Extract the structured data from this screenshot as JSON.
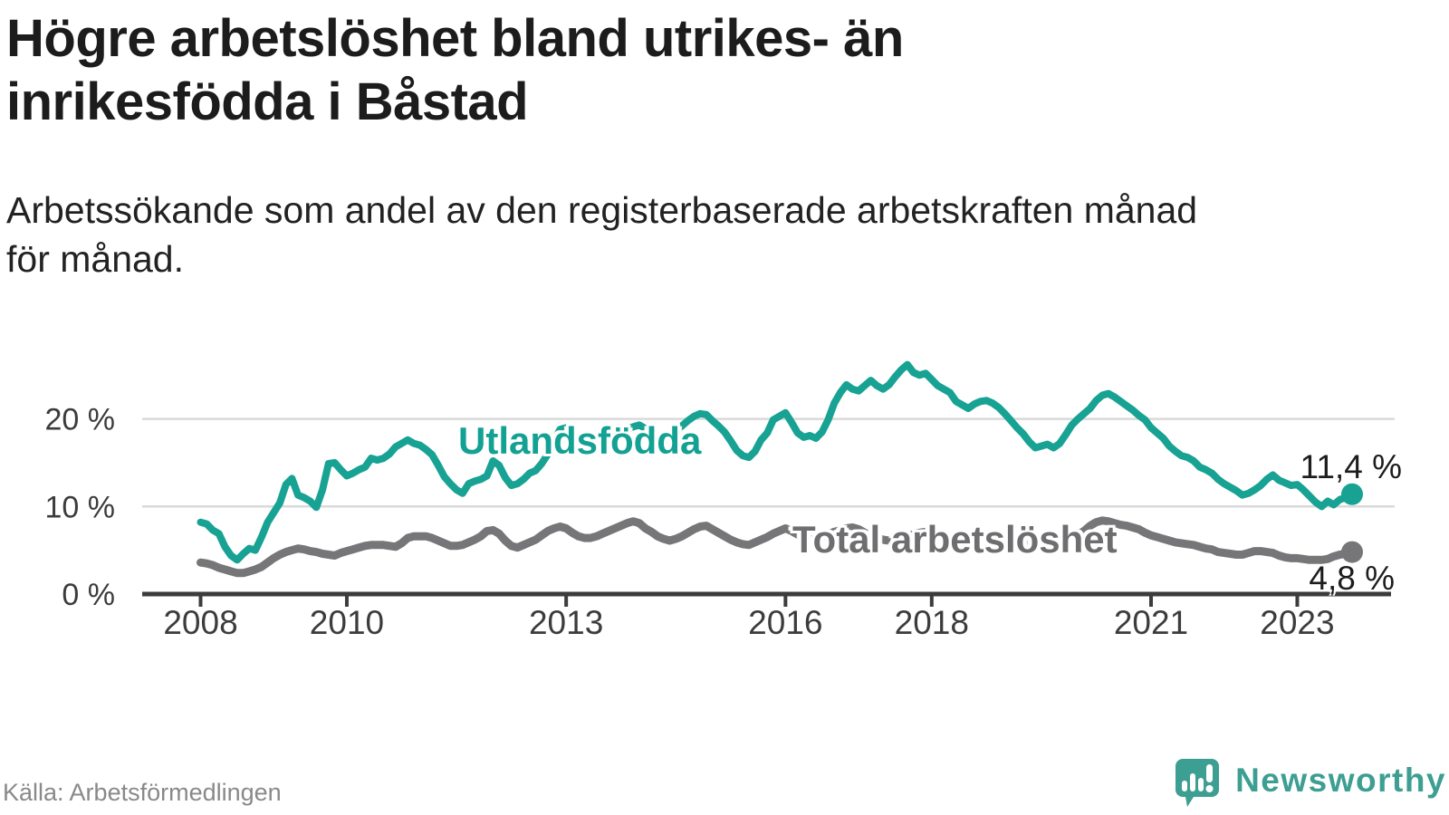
{
  "header": {
    "title": "Högre arbetslöshet bland utrikes- än\ninrikesfödda i Båstad",
    "subtitle": "Arbetssökande som andel av den registerbaserade arbetskraften månad\nför månad."
  },
  "footer": {
    "source": "Källa: Arbetsförmedlingen",
    "brand_name": "Newsworthy"
  },
  "colors": {
    "accent_teal": "#17a293",
    "series_gray": "#767679",
    "label_teal": "#12a193",
    "label_gray": "#6e6e71",
    "axis": "#3c3c3c",
    "gridline": "#dadada",
    "end_label_text": "#1d1d1d",
    "logo_teal": "#3d9e92"
  },
  "chart_data": {
    "type": "line",
    "title": "Högre arbetslöshet bland utrikes- än inrikesfödda i Båstad",
    "xlabel": "",
    "ylabel": "Arbetssökande som andel av den registerbaserade arbetskraften",
    "x_start_year": 2008,
    "x_step_months": 1,
    "x_axis": {
      "ticks": [
        2008,
        2010,
        2013,
        2016,
        2018,
        2021,
        2023
      ],
      "range": [
        2007.4,
        2024.3
      ]
    },
    "y_axis": {
      "ticks": [
        0,
        10,
        20
      ],
      "tick_labels": [
        "0 %",
        "10 %",
        "20 %"
      ],
      "range": [
        0,
        27.5
      ],
      "grid": true
    },
    "legend_position": "inline-labels",
    "series": [
      {
        "name": "Utlandsfödda",
        "color": "#17a293",
        "end_label": "11,4 %",
        "end_value": 11.4,
        "values": [
          8.2,
          8.0,
          7.3,
          6.9,
          5.4,
          4.4,
          3.9,
          4.6,
          5.2,
          5.0,
          6.5,
          8.2,
          9.3,
          10.4,
          12.5,
          13.2,
          11.3,
          11.0,
          10.6,
          9.9,
          11.9,
          14.9,
          15.0,
          14.2,
          13.5,
          13.8,
          14.2,
          14.5,
          15.5,
          15.3,
          15.5,
          16.0,
          16.8,
          17.2,
          17.6,
          17.2,
          17.0,
          16.5,
          15.9,
          14.7,
          13.4,
          12.6,
          11.9,
          11.5,
          12.6,
          12.9,
          13.1,
          13.5,
          15.2,
          14.7,
          13.3,
          12.4,
          12.6,
          13.1,
          13.8,
          14.1,
          14.9,
          16.0,
          17.5,
          18.8,
          19.0,
          18.4,
          17.8,
          17.4,
          17.2,
          17.0,
          17.3,
          17.6,
          18.0,
          18.4,
          18.8,
          19.1,
          19.3,
          18.9,
          18.4,
          18.1,
          18.0,
          18.2,
          18.6,
          19.2,
          19.8,
          20.3,
          20.6,
          20.5,
          19.8,
          19.2,
          18.5,
          17.5,
          16.4,
          15.8,
          15.6,
          16.3,
          17.6,
          18.4,
          19.9,
          20.3,
          20.7,
          19.6,
          18.4,
          17.9,
          18.1,
          17.8,
          18.5,
          19.9,
          21.8,
          23.0,
          23.9,
          23.4,
          23.2,
          23.8,
          24.4,
          23.8,
          23.4,
          23.9,
          24.8,
          25.6,
          26.2,
          25.3,
          25.0,
          25.2,
          24.5,
          23.8,
          23.4,
          23.0,
          22.0,
          21.6,
          21.2,
          21.7,
          22.0,
          22.1,
          21.8,
          21.3,
          20.6,
          19.8,
          19.0,
          18.3,
          17.4,
          16.7,
          16.9,
          17.1,
          16.7,
          17.2,
          18.2,
          19.3,
          20.0,
          20.6,
          21.2,
          22.1,
          22.7,
          22.9,
          22.5,
          22.0,
          21.5,
          21.0,
          20.4,
          19.9,
          19.0,
          18.4,
          17.8,
          16.9,
          16.3,
          15.8,
          15.6,
          15.2,
          14.5,
          14.2,
          13.8,
          13.1,
          12.6,
          12.2,
          11.8,
          11.3,
          11.5,
          11.9,
          12.4,
          13.1,
          13.6,
          13.0,
          12.7,
          12.4,
          12.5,
          11.9,
          11.2,
          10.5,
          10.0,
          10.6,
          10.2,
          10.8,
          11.0,
          11.4
        ]
      },
      {
        "name": "Total arbetslöshet",
        "color": "#767679",
        "end_label": "4,8 %",
        "end_value": 4.8,
        "values": [
          3.6,
          3.5,
          3.3,
          3.0,
          2.8,
          2.6,
          2.4,
          2.4,
          2.6,
          2.8,
          3.1,
          3.6,
          4.1,
          4.5,
          4.8,
          5.0,
          5.2,
          5.1,
          4.9,
          4.8,
          4.6,
          4.5,
          4.4,
          4.7,
          4.9,
          5.1,
          5.3,
          5.5,
          5.6,
          5.6,
          5.6,
          5.5,
          5.4,
          5.8,
          6.4,
          6.6,
          6.6,
          6.6,
          6.4,
          6.1,
          5.8,
          5.5,
          5.5,
          5.6,
          5.9,
          6.2,
          6.6,
          7.2,
          7.3,
          6.9,
          6.1,
          5.5,
          5.3,
          5.6,
          5.9,
          6.2,
          6.7,
          7.2,
          7.5,
          7.7,
          7.5,
          7.0,
          6.6,
          6.4,
          6.4,
          6.6,
          6.9,
          7.2,
          7.5,
          7.8,
          8.1,
          8.3,
          8.1,
          7.5,
          7.1,
          6.6,
          6.3,
          6.1,
          6.3,
          6.6,
          7.0,
          7.4,
          7.7,
          7.8,
          7.4,
          7.0,
          6.6,
          6.2,
          5.9,
          5.7,
          5.6,
          5.9,
          6.2,
          6.5,
          6.9,
          7.2,
          7.5,
          7.2,
          6.8,
          6.4,
          6.2,
          6.3,
          6.5,
          6.8,
          7.1,
          7.3,
          7.5,
          7.6,
          7.4,
          7.0,
          6.7,
          6.4,
          6.2,
          6.1,
          6.2,
          6.4,
          6.6,
          6.8,
          7.0,
          7.1,
          6.9,
          6.6,
          6.3,
          6.0,
          5.8,
          5.7,
          5.8,
          6.0,
          6.2,
          6.4,
          6.6,
          6.7,
          6.5,
          6.2,
          6.0,
          5.8,
          5.6,
          5.5,
          5.6,
          5.8,
          6.0,
          6.2,
          6.4,
          6.6,
          6.8,
          7.2,
          7.8,
          8.2,
          8.4,
          8.3,
          8.1,
          7.9,
          7.8,
          7.6,
          7.4,
          7.0,
          6.7,
          6.5,
          6.3,
          6.1,
          5.9,
          5.8,
          5.7,
          5.6,
          5.4,
          5.2,
          5.1,
          4.8,
          4.7,
          4.6,
          4.5,
          4.5,
          4.7,
          4.9,
          4.9,
          4.8,
          4.7,
          4.4,
          4.2,
          4.1,
          4.1,
          4.0,
          3.9,
          3.9,
          3.9,
          4.0,
          4.3,
          4.5,
          4.6,
          4.8
        ]
      }
    ]
  }
}
